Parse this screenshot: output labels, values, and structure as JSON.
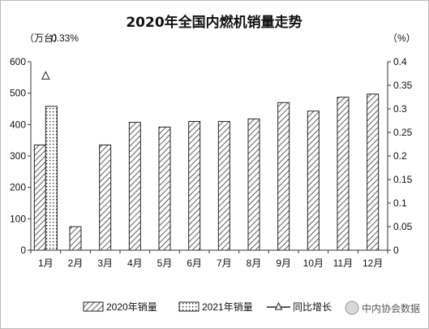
{
  "chart_data": {
    "type": "bar",
    "title": "2020年全国内燃机销量走势",
    "ylabel_left": "（万台）",
    "ylabel_right": "（%）",
    "xlabel": "",
    "categories": [
      "1月",
      "2月",
      "3月",
      "4月",
      "5月",
      "6月",
      "7月",
      "8月",
      "9月",
      "10月",
      "11月",
      "12月"
    ],
    "ylim_left": [
      0,
      600
    ],
    "yticks_left": [
      "0",
      "100",
      "200",
      "300",
      "400",
      "500",
      "600"
    ],
    "ylim_right": [
      0,
      0.4
    ],
    "yticks_right": [
      "0",
      "0.05",
      "0.1",
      "0.15",
      "0.2",
      "0.25",
      "0.3",
      "0.35",
      "0.4"
    ],
    "series": [
      {
        "name": "2020年销量",
        "pattern": "diagonal-hatch",
        "values": [
          335,
          75,
          335,
          407,
          392,
          410,
          410,
          418,
          470,
          443,
          487,
          497
        ]
      },
      {
        "name": "2021年销量",
        "pattern": "dotted",
        "values": [
          458,
          null,
          null,
          null,
          null,
          null,
          null,
          null,
          null,
          null,
          null,
          null
        ]
      },
      {
        "name": "同比增长",
        "marker": "triangle",
        "axis": "right",
        "values": [
          0.37,
          null,
          null,
          null,
          null,
          null,
          null,
          null,
          null,
          null,
          null,
          null
        ]
      }
    ],
    "annotations": [
      {
        "text": "0.33%"
      }
    ],
    "legend_position": "bottom",
    "grid": false
  },
  "watermark": {
    "text": "中内协会数据"
  },
  "colors": {
    "bar_stroke": "#222222",
    "axis": "#333333",
    "background": "#ffffff"
  }
}
